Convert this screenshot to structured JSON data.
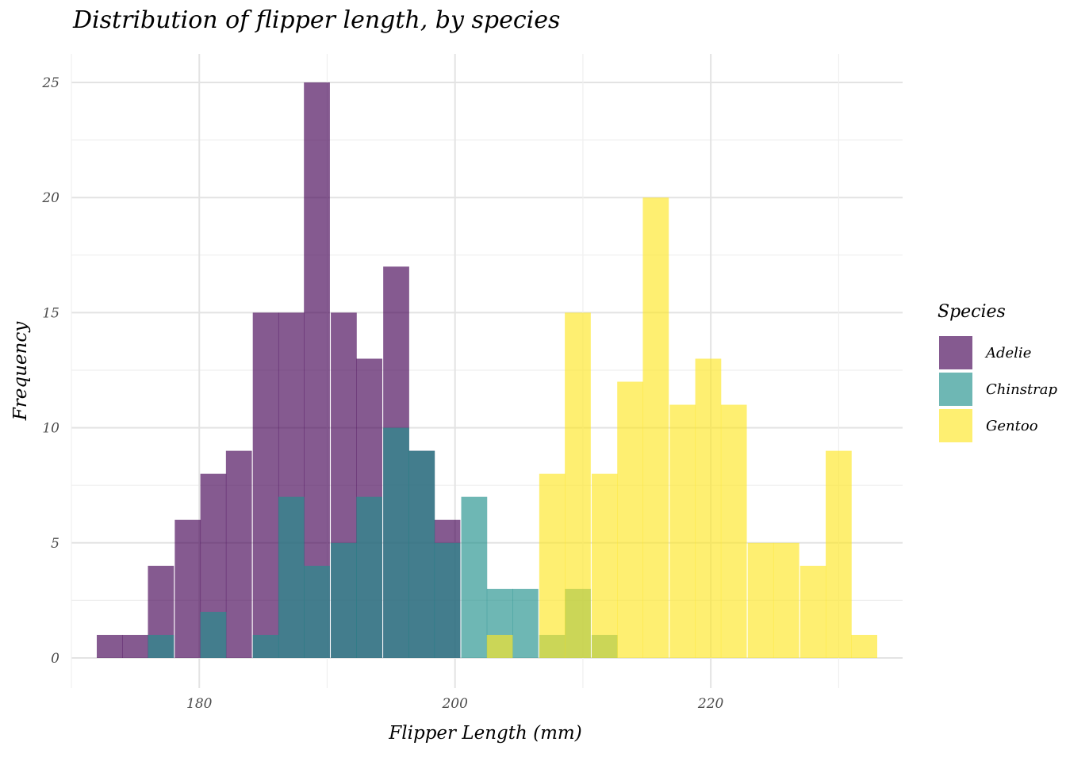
{
  "chart_data": {
    "type": "histogram",
    "title": "Distribution of flipper length, by species",
    "xlabel": "Flipper Length (mm)",
    "ylabel": "Frequency",
    "xlim": [
      170,
      235
    ],
    "ylim": [
      0,
      25
    ],
    "x_ticks": [
      180,
      200,
      220
    ],
    "y_ticks": [
      0,
      5,
      10,
      15,
      20,
      25
    ],
    "bin_width": 2.03,
    "grid": true,
    "legend": {
      "title": "Species",
      "placement": "right",
      "entries": [
        "Adelie",
        "Chinstrap",
        "Gentoo"
      ]
    },
    "series": [
      {
        "name": "Adelie",
        "color": "#440154",
        "bins": [
          {
            "x": 173.0,
            "count": 1
          },
          {
            "x": 175.0,
            "count": 1
          },
          {
            "x": 177.0,
            "count": 4
          },
          {
            "x": 179.1,
            "count": 6
          },
          {
            "x": 181.1,
            "count": 8
          },
          {
            "x": 183.1,
            "count": 9
          },
          {
            "x": 185.2,
            "count": 15
          },
          {
            "x": 187.2,
            "count": 15
          },
          {
            "x": 189.2,
            "count": 25
          },
          {
            "x": 191.3,
            "count": 15
          },
          {
            "x": 193.3,
            "count": 13
          },
          {
            "x": 195.4,
            "count": 17
          },
          {
            "x": 197.4,
            "count": 9
          },
          {
            "x": 199.4,
            "count": 6
          },
          {
            "x": 201.5,
            "count": 0
          },
          {
            "x": 203.5,
            "count": 0
          },
          {
            "x": 205.5,
            "count": 0
          },
          {
            "x": 207.6,
            "count": 0
          },
          {
            "x": 209.6,
            "count": 0
          },
          {
            "x": 211.7,
            "count": 0
          }
        ]
      },
      {
        "name": "Chinstrap",
        "color": "#21908C",
        "bins": [
          {
            "x": 177.0,
            "count": 1
          },
          {
            "x": 181.1,
            "count": 2
          },
          {
            "x": 185.2,
            "count": 1
          },
          {
            "x": 187.2,
            "count": 7
          },
          {
            "x": 189.2,
            "count": 4
          },
          {
            "x": 191.3,
            "count": 5
          },
          {
            "x": 193.3,
            "count": 7
          },
          {
            "x": 195.4,
            "count": 10
          },
          {
            "x": 197.4,
            "count": 9
          },
          {
            "x": 199.4,
            "count": 5
          },
          {
            "x": 201.5,
            "count": 7
          },
          {
            "x": 203.5,
            "count": 3
          },
          {
            "x": 205.5,
            "count": 3
          },
          {
            "x": 207.6,
            "count": 1
          },
          {
            "x": 209.6,
            "count": 3
          },
          {
            "x": 211.7,
            "count": 1
          }
        ]
      },
      {
        "name": "Gentoo",
        "color": "#FDE725",
        "bins": [
          {
            "x": 203.5,
            "count": 1
          },
          {
            "x": 207.6,
            "count": 8
          },
          {
            "x": 209.6,
            "count": 15
          },
          {
            "x": 211.7,
            "count": 8
          },
          {
            "x": 213.7,
            "count": 12
          },
          {
            "x": 215.7,
            "count": 20
          },
          {
            "x": 217.8,
            "count": 11
          },
          {
            "x": 219.8,
            "count": 13
          },
          {
            "x": 221.8,
            "count": 11
          },
          {
            "x": 223.9,
            "count": 5
          },
          {
            "x": 225.9,
            "count": 5
          },
          {
            "x": 228.0,
            "count": 4
          },
          {
            "x": 230.0,
            "count": 9
          },
          {
            "x": 232.0,
            "count": 1
          }
        ]
      }
    ]
  }
}
